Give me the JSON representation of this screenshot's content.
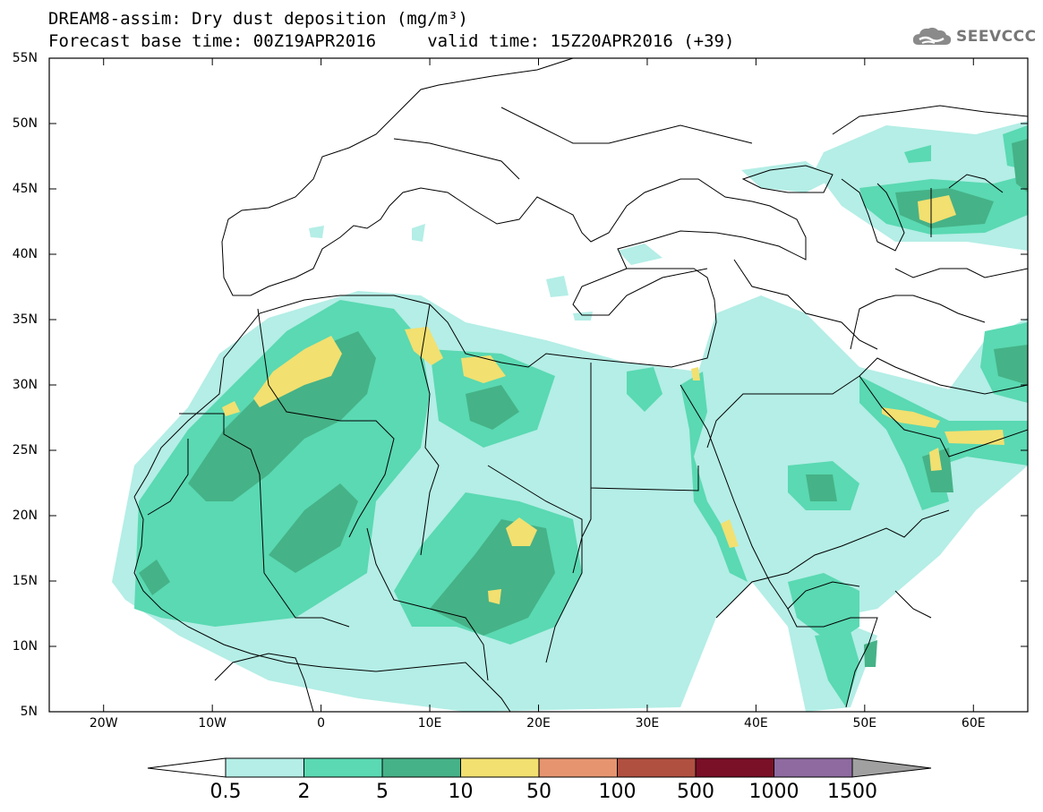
{
  "title": {
    "line1": "DREAM8-assim: Dry dust deposition (mg/m³)",
    "line2": "Forecast base time: 00Z19APR2016     valid time: 15Z20APR2016 (+39)"
  },
  "logo": {
    "text": "SEEVCCC",
    "icon": "cloud-icon"
  },
  "map": {
    "lon_range": [
      -25,
      65
    ],
    "lat_range": [
      5,
      55
    ],
    "lat_ticks": [
      {
        "lat": 55,
        "label": "55N"
      },
      {
        "lat": 50,
        "label": "50N"
      },
      {
        "lat": 45,
        "label": "45N"
      },
      {
        "lat": 40,
        "label": "40N"
      },
      {
        "lat": 35,
        "label": "35N"
      },
      {
        "lat": 30,
        "label": "30N"
      },
      {
        "lat": 25,
        "label": "25N"
      },
      {
        "lat": 20,
        "label": "20N"
      },
      {
        "lat": 15,
        "label": "15N"
      },
      {
        "lat": 10,
        "label": "10N"
      },
      {
        "lat": 5,
        "label": "5N"
      }
    ],
    "lon_ticks": [
      {
        "lon": -20,
        "label": "20W"
      },
      {
        "lon": -10,
        "label": "10W"
      },
      {
        "lon": 0,
        "label": "0"
      },
      {
        "lon": 10,
        "label": "10E"
      },
      {
        "lon": 20,
        "label": "20E"
      },
      {
        "lon": 30,
        "label": "30E"
      },
      {
        "lon": 40,
        "label": "40E"
      },
      {
        "lon": 50,
        "label": "50E"
      },
      {
        "lon": 60,
        "label": "60E"
      }
    ]
  },
  "colorbar": {
    "levels": [
      "0.5",
      "2",
      "5",
      "10",
      "50",
      "100",
      "500",
      "1000",
      "1500"
    ],
    "colors": [
      "#b4eee6",
      "#5ad9b2",
      "#46b287",
      "#f2e070",
      "#e69470",
      "#b05040",
      "#7a0f28",
      "#8e6aa0"
    ],
    "over_color": "#a0a0a0",
    "under_color": "#ffffff"
  },
  "layers": {
    "coast": "#000000",
    "lev1": "#b4eee6",
    "lev2": "#5ad9b2",
    "lev3": "#46b287",
    "lev4": "#f2e070"
  }
}
